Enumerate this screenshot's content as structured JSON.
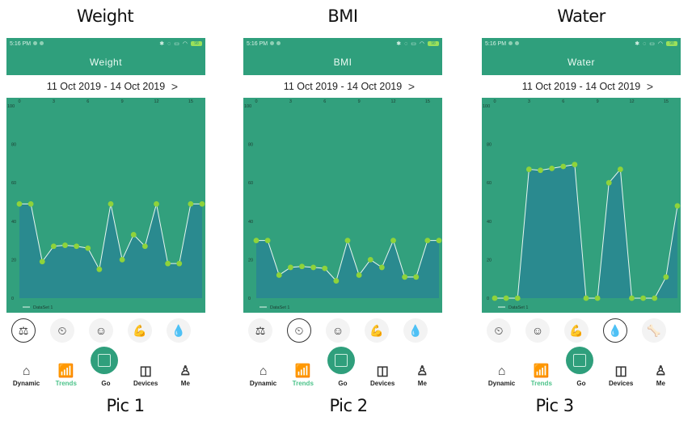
{
  "captions_top": [
    "Weight",
    "BMI",
    "Water"
  ],
  "captions_bottom": [
    "Pic 1",
    "Pic 2",
    "Pic 3"
  ],
  "panels": [
    {
      "status_time": "5:16 PM",
      "battery": "98",
      "title": "Weight",
      "date_range": "11 Oct 2019 - 14 Oct 2019",
      "next_icon": ">",
      "legend": "DataSet 1",
      "selected_icon": 0,
      "icons": [
        "scale-icon",
        "body-fat-scale-icon",
        "muscle-body-icon",
        "arm-muscle-icon",
        "water-drop-icon",
        "partial-icon"
      ]
    },
    {
      "status_time": "5:16 PM",
      "battery": "98",
      "title": "BMI",
      "date_range": "11 Oct 2019 - 14 Oct 2019",
      "next_icon": ">",
      "legend": "DataSet 1",
      "selected_icon": 1,
      "icons": [
        "scale-icon",
        "body-fat-scale-icon",
        "muscle-body-icon",
        "arm-muscle-icon",
        "water-drop-icon",
        "partial-icon"
      ]
    },
    {
      "status_time": "5:16 PM",
      "battery": "98",
      "title": "Water",
      "date_range": "11 Oct 2019 - 14 Oct 2019",
      "next_icon": ">",
      "legend": "DataSet 1",
      "selected_icon": 3,
      "icons": [
        "body-fat-scale-icon",
        "muscle-body-icon",
        "arm-muscle-icon",
        "water-drop-icon",
        "bone-icon",
        "partial-icon"
      ]
    }
  ],
  "bottom_nav": [
    {
      "label": "Dynamic",
      "icon": "home-icon",
      "active": false
    },
    {
      "label": "Trends",
      "icon": "trends-icon",
      "active": true
    },
    {
      "label": "Go",
      "icon": "scale-icon",
      "active": false
    },
    {
      "label": "Devices",
      "icon": "devices-icon",
      "active": false
    },
    {
      "label": "Me",
      "icon": "person-icon",
      "active": false
    }
  ],
  "colors": {
    "brand": "#2f9f7c",
    "chart_bg": "#32a07d",
    "area_fill": "#2a8a8f",
    "point": "#8fd33a",
    "line": "#e8f7f0",
    "active_nav": "#4cc38a"
  },
  "chart_data": [
    {
      "type": "area",
      "title": "Weight",
      "x": [
        0,
        1,
        2,
        3,
        4,
        5,
        6,
        7,
        8,
        9,
        10,
        11,
        12,
        13,
        14,
        15,
        16
      ],
      "x_ticks": [
        0,
        3,
        6,
        9,
        12,
        15
      ],
      "y_ticks": [
        0,
        20,
        40,
        60,
        80,
        100
      ],
      "ylim": [
        0,
        100
      ],
      "legend": [
        "DataSet 1"
      ],
      "series": [
        {
          "name": "DataSet 1",
          "values": [
            49,
            49,
            19,
            27,
            27.5,
            27,
            26,
            15,
            49,
            20,
            33,
            27,
            49,
            18,
            18,
            49,
            49
          ]
        }
      ]
    },
    {
      "type": "area",
      "title": "BMI",
      "x": [
        0,
        1,
        2,
        3,
        4,
        5,
        6,
        7,
        8,
        9,
        10,
        11,
        12,
        13,
        14,
        15,
        16
      ],
      "x_ticks": [
        0,
        3,
        6,
        9,
        12,
        15
      ],
      "y_ticks": [
        0,
        20,
        40,
        60,
        80,
        100
      ],
      "ylim": [
        0,
        100
      ],
      "legend": [
        "DataSet 1"
      ],
      "series": [
        {
          "name": "DataSet 1",
          "values": [
            30,
            30,
            12,
            16,
            16.5,
            16,
            15.5,
            9,
            30,
            12,
            20,
            16,
            30,
            11,
            11,
            30,
            30
          ]
        }
      ]
    },
    {
      "type": "area",
      "title": "Water",
      "x": [
        0,
        1,
        2,
        3,
        4,
        5,
        6,
        7,
        8,
        9,
        10,
        11,
        12,
        13,
        14,
        15,
        16
      ],
      "x_ticks": [
        0,
        3,
        6,
        9,
        12,
        15
      ],
      "y_ticks": [
        0,
        20,
        40,
        60,
        80,
        100
      ],
      "ylim": [
        0,
        100
      ],
      "legend": [
        "DataSet 1"
      ],
      "series": [
        {
          "name": "DataSet 1",
          "values": [
            0,
            0,
            0,
            67,
            66.5,
            67.5,
            68.5,
            69.5,
            0,
            0,
            60,
            67,
            0,
            0,
            0,
            11,
            48
          ]
        }
      ]
    }
  ]
}
